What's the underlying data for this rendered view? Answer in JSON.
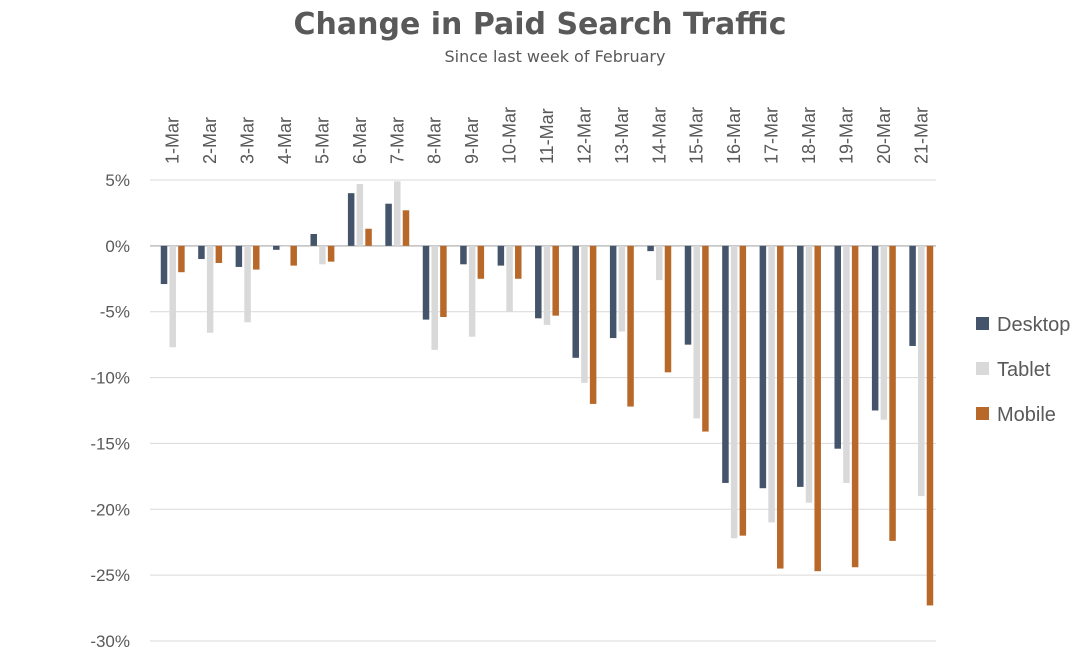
{
  "chart_data": {
    "type": "bar",
    "title": "Change in Paid Search Traffic",
    "subtitle": "Since last week of February",
    "categories": [
      "1-Mar",
      "2-Mar",
      "3-Mar",
      "4-Mar",
      "5-Mar",
      "6-Mar",
      "7-Mar",
      "8-Mar",
      "9-Mar",
      "10-Mar",
      "11-Mar",
      "12-Mar",
      "13-Mar",
      "14-Mar",
      "15-Mar",
      "16-Mar",
      "17-Mar",
      "18-Mar",
      "19-Mar",
      "20-Mar",
      "21-Mar"
    ],
    "y_ticks": [
      "5%",
      "0%",
      "-5%",
      "-10%",
      "-15%",
      "-20%",
      "-25%",
      "-30%"
    ],
    "ylim": [
      -30,
      5
    ],
    "y_unit": "%",
    "grid": true,
    "legend_position": "right",
    "series": [
      {
        "name": "Desktop",
        "color": "#44546a",
        "values": [
          -2.9,
          -1.0,
          -1.6,
          -0.3,
          0.9,
          4.0,
          3.2,
          -5.6,
          -1.4,
          -1.5,
          -5.5,
          -8.5,
          -7.0,
          -0.4,
          -7.5,
          -18.0,
          -18.4,
          -18.3,
          -15.4,
          -12.5,
          -7.6
        ]
      },
      {
        "name": "Tablet",
        "color": "#d9d9d9",
        "values": [
          -7.7,
          -6.6,
          -5.8,
          0.0,
          -1.4,
          4.7,
          4.9,
          -7.9,
          -6.9,
          -5.0,
          -6.0,
          -10.4,
          -6.5,
          -2.6,
          -13.1,
          -22.2,
          -21.0,
          -19.5,
          -18.0,
          -13.2,
          -19.0
        ]
      },
      {
        "name": "Mobile",
        "color": "#b8692a",
        "values": [
          -2.0,
          -1.3,
          -1.8,
          -1.5,
          -1.2,
          1.3,
          2.7,
          -5.4,
          -2.5,
          -2.5,
          -5.3,
          -12.0,
          -12.2,
          -9.6,
          -14.1,
          -22.0,
          -24.5,
          -24.7,
          -24.4,
          -22.4,
          -27.3
        ]
      }
    ]
  }
}
